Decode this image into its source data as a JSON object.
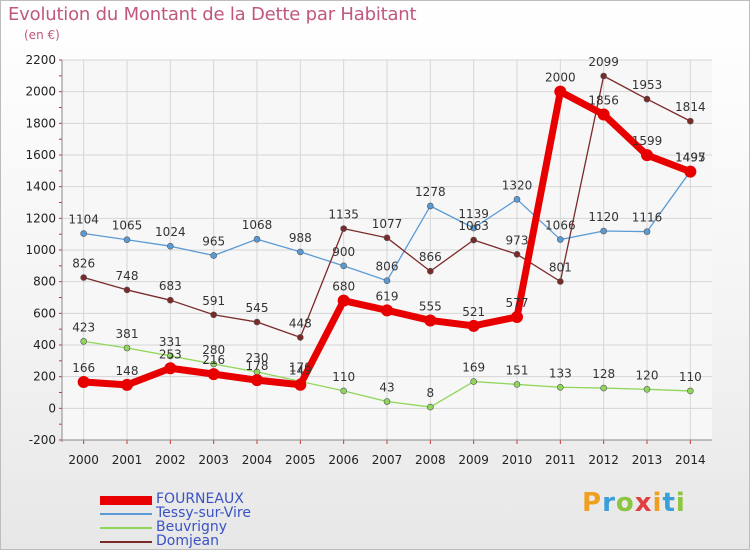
{
  "title": "Evolution du Montant de la Dette par Habitant",
  "subtitle": "(en €)",
  "logo": "Proxiti",
  "chart_data": {
    "type": "line",
    "title": "Evolution du Montant de la Dette par Habitant",
    "ylabel": "(en €)",
    "x": [
      2000,
      2001,
      2002,
      2003,
      2004,
      2005,
      2006,
      2007,
      2008,
      2009,
      2010,
      2011,
      2012,
      2013,
      2014
    ],
    "ylim": [
      -200,
      2200
    ],
    "yticks": [
      -200,
      0,
      200,
      400,
      600,
      800,
      1000,
      1200,
      1400,
      1600,
      1800,
      2000,
      2200
    ],
    "grid": true,
    "legend_position": "bottom-left",
    "series": [
      {
        "name": "FOURNEAUX",
        "color": "#e80000",
        "values": [
          166,
          148,
          253,
          216,
          178,
          149,
          680,
          619,
          555,
          521,
          577,
          2000,
          1856,
          1599,
          1495
        ]
      },
      {
        "name": "Tessy-sur-Vire",
        "color": "#5b9bd5",
        "values": [
          1104,
          1065,
          1024,
          965,
          1068,
          988,
          900,
          806,
          1278,
          1139,
          1320,
          1066,
          1120,
          1116,
          1497
        ]
      },
      {
        "name": "Beuvrigny",
        "color": "#8fd65a",
        "values": [
          423,
          381,
          331,
          280,
          230,
          170,
          110,
          43,
          8,
          169,
          151,
          133,
          128,
          120,
          110
        ]
      },
      {
        "name": "Domjean",
        "color": "#7b2a2a",
        "values": [
          826,
          748,
          683,
          591,
          545,
          448,
          1135,
          1077,
          866,
          1063,
          973,
          801,
          2099,
          1953,
          1814
        ]
      }
    ]
  }
}
